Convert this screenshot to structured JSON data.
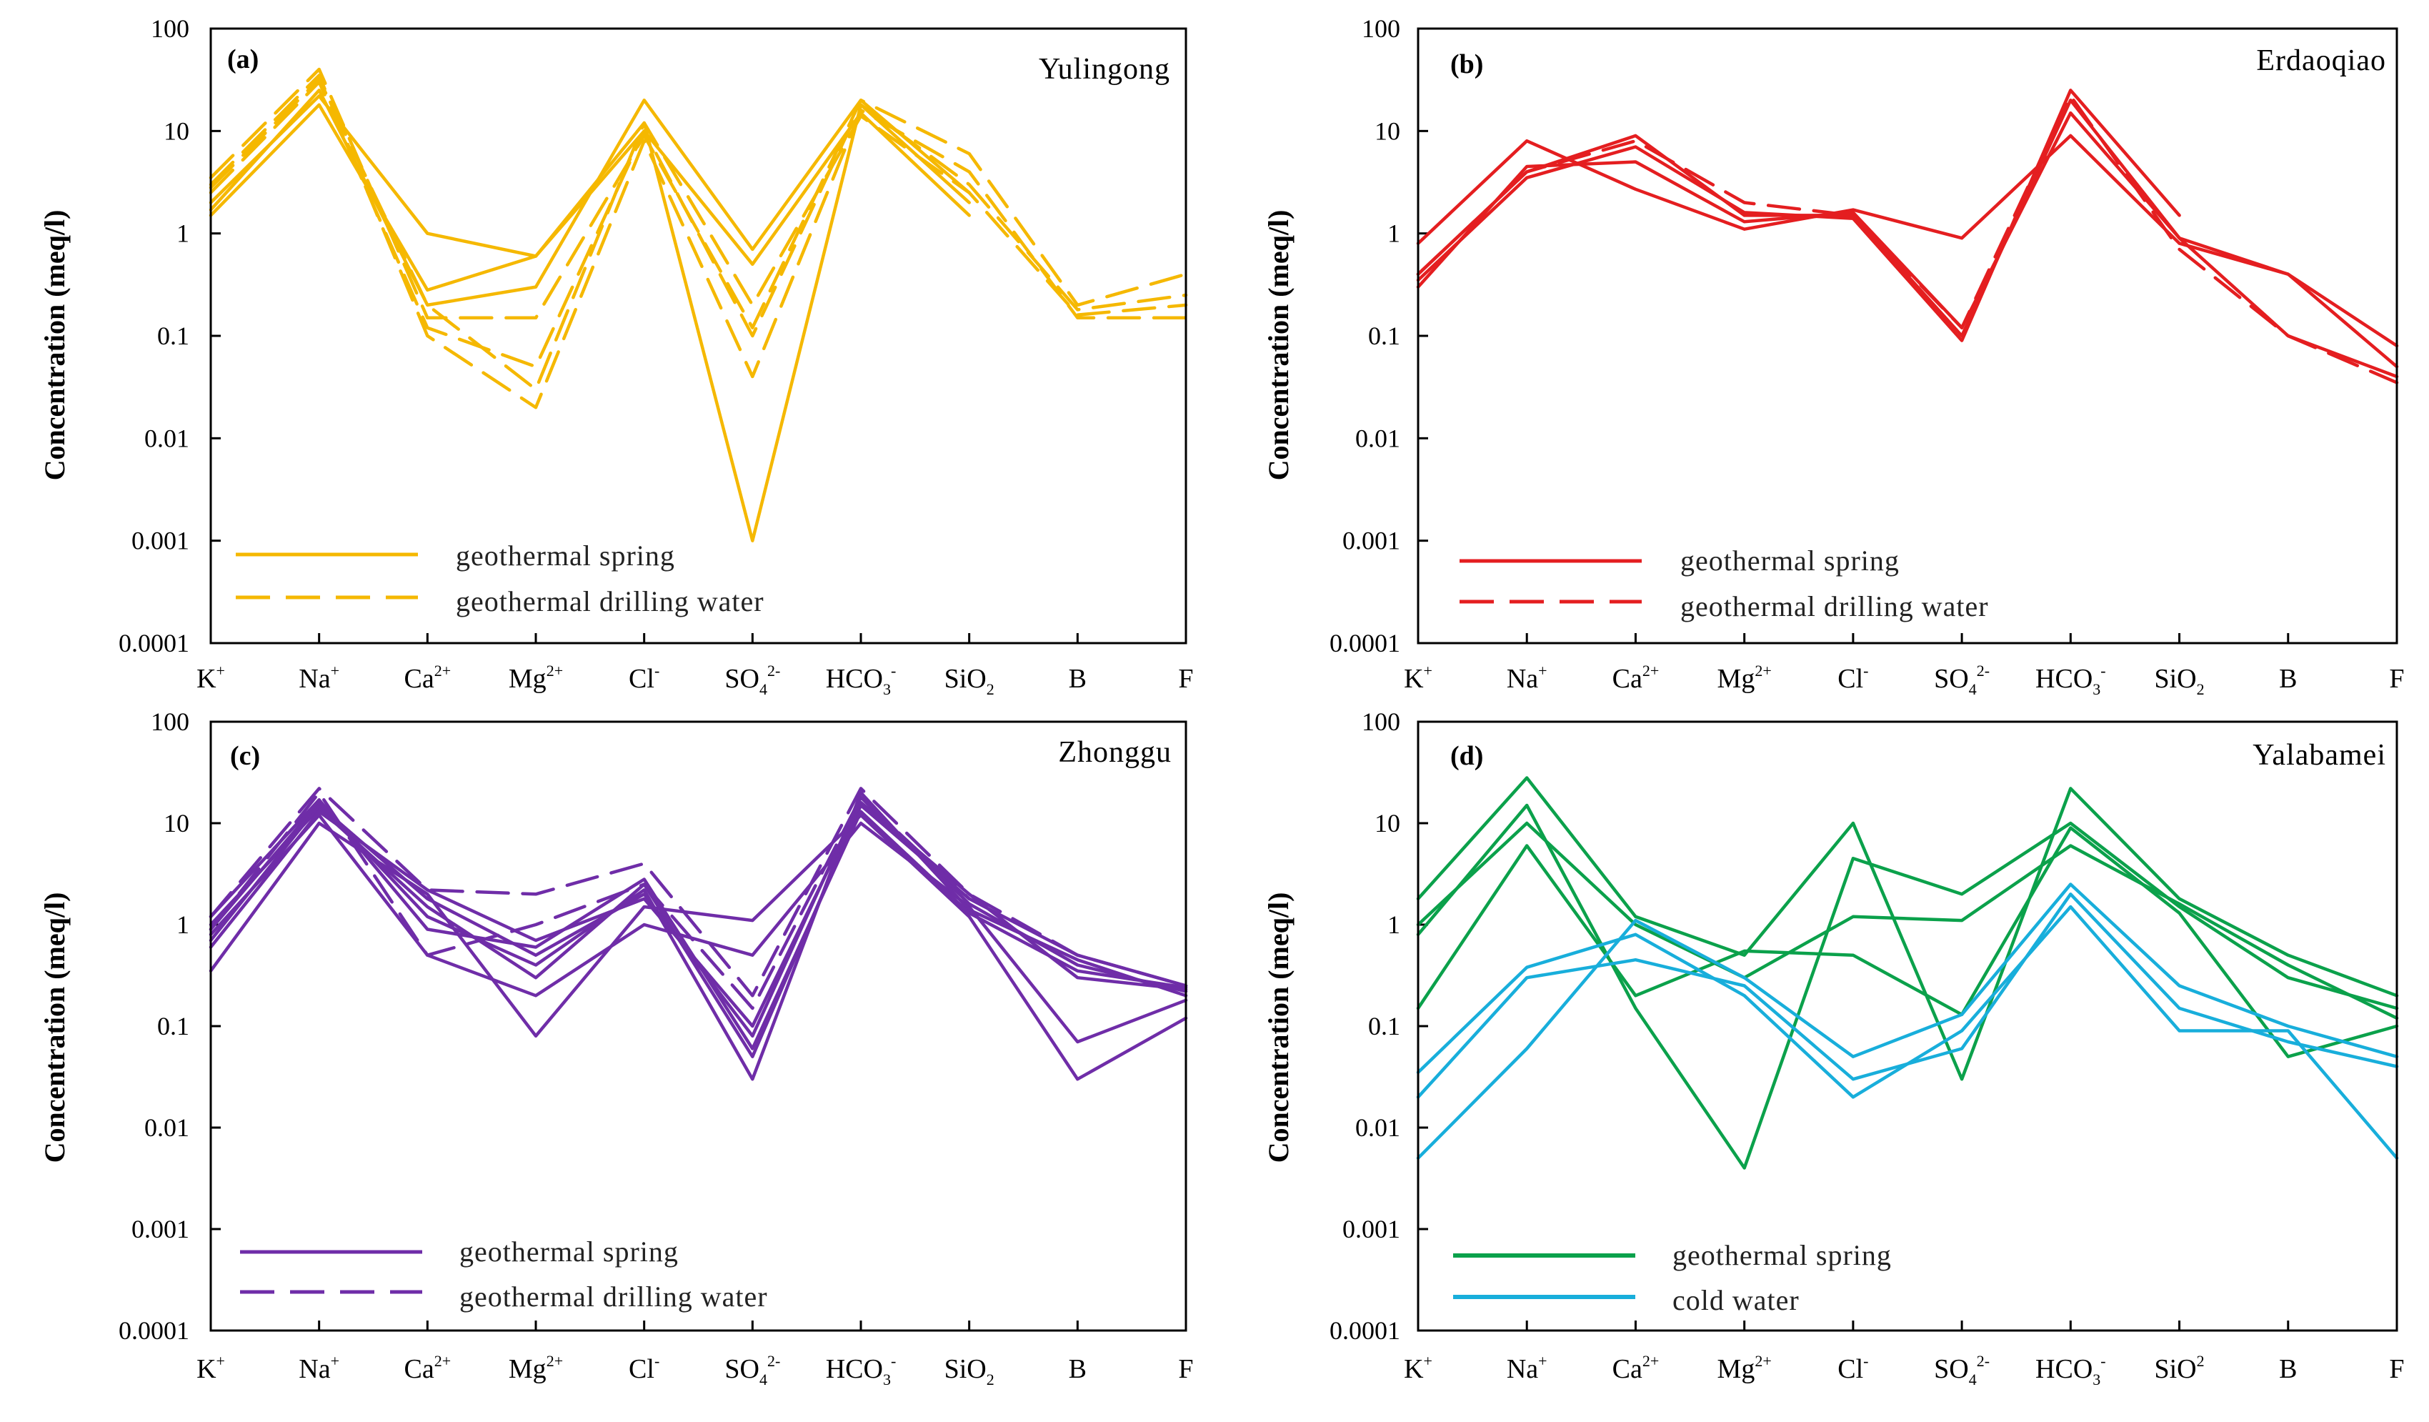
{
  "figure": {
    "ytitle": "Concentration (meq/l)",
    "yticks": [
      "100",
      "10",
      "1",
      "0.1",
      "0.01",
      "0.001",
      "0.0001"
    ],
    "legend_spring": "geothermal spring",
    "legend_drilling": "geothermal drilling water",
    "legend_cold": "cold water",
    "colors": {
      "yulingong": "#F5B800",
      "erdaoqiao": "#E41E20",
      "zhonggu": "#6F2DA8",
      "spring_green": "#0BA14B",
      "cold_blue": "#18AEDB"
    }
  },
  "chart_data": [
    {
      "type": "line",
      "yscale": "log",
      "ylim": [
        0.0001,
        100
      ],
      "panel_label": "(a)",
      "title": "Yulingong",
      "xlabel": "",
      "ylabel": "Concentration (meq/l)",
      "categories": [
        {
          "base": "K",
          "sup": "+",
          "sub": ""
        },
        {
          "base": "Na",
          "sup": "+",
          "sub": ""
        },
        {
          "base": "Ca",
          "sup": "2+",
          "sub": ""
        },
        {
          "base": "Mg",
          "sup": "2+",
          "sub": ""
        },
        {
          "base": "Cl",
          "sup": "-",
          "sub": ""
        },
        {
          "base": "SO",
          "sup": "2-",
          "sub": "4"
        },
        {
          "base": "HCO",
          "sup": "-",
          "sub": "3"
        },
        {
          "base": "SiO",
          "sup": "",
          "sub": "2"
        },
        {
          "base": "B",
          "sup": "",
          "sub": ""
        },
        {
          "base": "F",
          "sup": "",
          "sub": ""
        }
      ],
      "series": [
        {
          "name": "geothermal spring",
          "dash": false,
          "values": [
            1.5,
            18,
            0.28,
            0.6,
            10,
            0.5,
            15,
            1.5,
            null,
            null
          ]
        },
        {
          "name": "geothermal spring",
          "dash": false,
          "values": [
            2,
            22,
            1.0,
            0.6,
            12,
            0.001,
            18,
            2,
            null,
            null
          ]
        },
        {
          "name": "geothermal spring",
          "dash": false,
          "values": [
            1.7,
            25,
            0.2,
            0.3,
            20,
            0.7,
            20,
            2.5,
            null,
            null
          ]
        },
        {
          "name": "geothermal drilling water",
          "dash": true,
          "values": [
            3.5,
            40,
            0.15,
            0.15,
            9,
            0.12,
            20,
            6,
            0.2,
            0.4
          ]
        },
        {
          "name": "geothermal drilling water",
          "dash": true,
          "values": [
            3,
            35,
            0.1,
            0.02,
            8,
            0.04,
            16,
            4,
            0.15,
            0.15
          ]
        },
        {
          "name": "geothermal drilling water",
          "dash": true,
          "values": [
            2.5,
            30,
            0.12,
            0.05,
            10,
            0.1,
            18,
            3,
            0.18,
            0.25
          ]
        },
        {
          "name": "geothermal drilling water",
          "dash": true,
          "values": [
            2.8,
            32,
            0.2,
            0.03,
            12,
            0.2,
            14,
            2.5,
            0.16,
            0.2
          ]
        }
      ]
    },
    {
      "type": "line",
      "yscale": "log",
      "ylim": [
        0.0001,
        100
      ],
      "panel_label": "(b)",
      "title": "Erdaoqiao",
      "xlabel": "",
      "ylabel": "Concentration (meq/l)",
      "categories": [
        {
          "base": "K",
          "sup": "+",
          "sub": ""
        },
        {
          "base": "Na",
          "sup": "+",
          "sub": ""
        },
        {
          "base": "Ca",
          "sup": "2+",
          "sub": ""
        },
        {
          "base": "Mg",
          "sup": "2+",
          "sub": ""
        },
        {
          "base": "Cl",
          "sup": "-",
          "sub": ""
        },
        {
          "base": "SO",
          "sup": "2-",
          "sub": "4"
        },
        {
          "base": "HCO",
          "sup": "-",
          "sub": "3"
        },
        {
          "base": "SiO",
          "sup": "",
          "sub": "2"
        },
        {
          "base": "B",
          "sup": "",
          "sub": ""
        },
        {
          "base": "F",
          "sup": "",
          "sub": ""
        }
      ],
      "series": [
        {
          "name": "geothermal spring",
          "dash": false,
          "values": [
            0.8,
            8,
            2.7,
            1.1,
            1.7,
            0.9,
            9,
            0.8,
            0.4,
            0.08
          ]
        },
        {
          "name": "geothermal spring",
          "dash": false,
          "values": [
            0.4,
            4,
            9,
            1.5,
            1.5,
            0.1,
            20,
            0.9,
            0.1,
            0.04
          ]
        },
        {
          "name": "geothermal spring",
          "dash": false,
          "values": [
            0.3,
            4.5,
            5,
            1.3,
            1.6,
            0.12,
            15,
            0.9,
            0.4,
            0.05
          ]
        },
        {
          "name": "geothermal spring",
          "dash": false,
          "values": [
            0.35,
            3.5,
            7,
            1.6,
            1.4,
            0.09,
            25,
            1.5,
            null,
            null
          ]
        },
        {
          "name": "geothermal drilling water",
          "dash": true,
          "values": [
            0.4,
            4,
            8,
            2,
            1.5,
            0.12,
            22,
            0.7,
            0.1,
            0.035
          ]
        }
      ]
    },
    {
      "type": "line",
      "yscale": "log",
      "ylim": [
        0.0001,
        100
      ],
      "panel_label": "(c)",
      "title": "Zhonggu",
      "xlabel": "",
      "ylabel": "Concentration (meq/l)",
      "categories": [
        {
          "base": "K",
          "sup": "+",
          "sub": ""
        },
        {
          "base": "Na",
          "sup": "+",
          "sub": ""
        },
        {
          "base": "Ca",
          "sup": "2+",
          "sub": ""
        },
        {
          "base": "Mg",
          "sup": "2+",
          "sub": ""
        },
        {
          "base": "Cl",
          "sup": "-",
          "sub": ""
        },
        {
          "base": "SO",
          "sup": "2-",
          "sub": "4"
        },
        {
          "base": "HCO",
          "sup": "-",
          "sub": "3"
        },
        {
          "base": "SiO",
          "sup": "",
          "sub": "2"
        },
        {
          "base": "B",
          "sup": "",
          "sub": ""
        },
        {
          "base": "F",
          "sup": "",
          "sub": ""
        }
      ],
      "series": [
        {
          "name": "geothermal spring",
          "dash": false,
          "values": [
            0.35,
            10,
            2,
            0.08,
            1.5,
            1.1,
            12,
            1.2,
            0.03,
            0.12
          ]
        },
        {
          "name": "geothermal spring",
          "dash": false,
          "values": [
            0.8,
            12,
            0.5,
            0.2,
            1.0,
            0.5,
            10,
            1.5,
            0.07,
            0.18
          ]
        },
        {
          "name": "geothermal spring",
          "dash": false,
          "values": [
            1.0,
            14,
            1.5,
            0.3,
            2.5,
            0.05,
            15,
            1.8,
            0.5,
            0.25
          ]
        },
        {
          "name": "geothermal spring",
          "dash": false,
          "values": [
            0.7,
            15,
            1.8,
            0.5,
            2.0,
            0.08,
            18,
            1.6,
            0.4,
            0.22
          ]
        },
        {
          "name": "geothermal spring",
          "dash": false,
          "values": [
            0.9,
            16,
            1.2,
            0.4,
            2.2,
            0.03,
            20,
            1.4,
            0.45,
            0.2
          ]
        },
        {
          "name": "geothermal spring",
          "dash": false,
          "values": [
            1.2,
            17,
            0.9,
            0.6,
            2.8,
            0.06,
            13,
            1.3,
            0.35,
            0.24
          ]
        },
        {
          "name": "geothermal spring",
          "dash": false,
          "values": [
            0.6,
            13,
            2.2,
            0.7,
            1.8,
            0.1,
            16,
            2.0,
            0.3,
            0.23
          ]
        },
        {
          "name": "geothermal drilling water",
          "dash": true,
          "values": [
            1.2,
            22,
            2.2,
            2.0,
            4.0,
            0.2,
            22,
            2.0,
            0.5,
            0.25
          ]
        },
        {
          "name": "geothermal drilling water",
          "dash": true,
          "values": [
            0.9,
            20,
            0.5,
            1.0,
            2.5,
            0.15,
            18,
            1.8,
            null,
            null
          ]
        }
      ]
    },
    {
      "type": "line",
      "yscale": "log",
      "ylim": [
        0.0001,
        100
      ],
      "panel_label": "(d)",
      "title": "Yalabamei",
      "xlabel": "",
      "ylabel": "Concentration (meq/l)",
      "categories": [
        {
          "base": "K",
          "sup": "+",
          "sub": ""
        },
        {
          "base": "Na",
          "sup": "+",
          "sub": ""
        },
        {
          "base": "Ca",
          "sup": "2+",
          "sub": ""
        },
        {
          "base": "Mg",
          "sup": "2+",
          "sub": ""
        },
        {
          "base": "Cl",
          "sup": "-",
          "sub": ""
        },
        {
          "base": "SO",
          "sup": "2-",
          "sub": "4"
        },
        {
          "base": "HCO",
          "sup": "-",
          "sub": "3"
        },
        {
          "base": "SiO",
          "sup": "2",
          "sub": ""
        },
        {
          "base": "B",
          "sup": "",
          "sub": ""
        },
        {
          "base": "F",
          "sup": "",
          "sub": ""
        }
      ],
      "series": [
        {
          "name": "geothermal spring",
          "dash": false,
          "values": [
            1.8,
            28,
            1.2,
            0.5,
            10,
            0.03,
            22,
            1.8,
            0.5,
            0.2
          ]
        },
        {
          "name": "geothermal spring",
          "dash": false,
          "values": [
            0.8,
            15,
            0.15,
            0.004,
            4.5,
            2.0,
            10,
            1.5,
            0.3,
            0.15
          ]
        },
        {
          "name": "geothermal spring",
          "dash": false,
          "values": [
            0.15,
            6,
            0.2,
            0.55,
            0.5,
            0.13,
            9,
            1.3,
            0.05,
            0.1
          ]
        },
        {
          "name": "geothermal spring",
          "dash": false,
          "values": [
            1.0,
            10,
            1.0,
            0.3,
            1.2,
            1.1,
            6,
            1.6,
            0.4,
            0.12
          ]
        },
        {
          "name": "cold water",
          "dash": false,
          "values": [
            0.005,
            0.06,
            1.1,
            0.3,
            0.05,
            0.13,
            2.5,
            0.25,
            0.1,
            0.05
          ]
        },
        {
          "name": "cold water",
          "dash": false,
          "values": [
            0.035,
            0.38,
            0.8,
            0.2,
            0.02,
            0.09,
            1.5,
            0.09,
            0.09,
            0.005
          ]
        },
        {
          "name": "cold water",
          "dash": false,
          "values": [
            0.02,
            0.3,
            0.45,
            0.25,
            0.03,
            0.06,
            2.0,
            0.15,
            0.07,
            0.04
          ]
        }
      ]
    }
  ]
}
